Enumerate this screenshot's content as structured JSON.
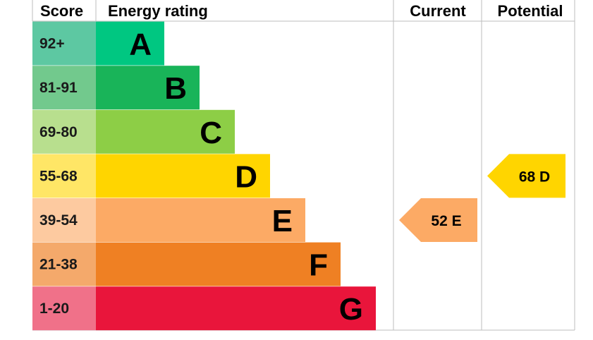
{
  "headers": {
    "score": "Score",
    "energy_rating": "Energy rating",
    "current": "Current",
    "potential": "Potential"
  },
  "chart_data": {
    "type": "bar",
    "categories": [
      "A",
      "B",
      "C",
      "D",
      "E",
      "F",
      "G"
    ],
    "bands": [
      {
        "letter": "A",
        "range": "92+",
        "bar_color": "#00c781",
        "score_color": "#5dc8a2"
      },
      {
        "letter": "B",
        "range": "81-91",
        "bar_color": "#19b459",
        "score_color": "#72c98d"
      },
      {
        "letter": "C",
        "range": "69-80",
        "bar_color": "#8dce46",
        "score_color": "#b8df8e"
      },
      {
        "letter": "D",
        "range": "55-68",
        "bar_color": "#ffd500",
        "score_color": "#ffe666"
      },
      {
        "letter": "E",
        "range": "39-54",
        "bar_color": "#fcaa65",
        "score_color": "#fdcaa0"
      },
      {
        "letter": "F",
        "range": "21-38",
        "bar_color": "#ef8023",
        "score_color": "#f4a96b"
      },
      {
        "letter": "G",
        "range": "1-20",
        "bar_color": "#e9153b",
        "score_color": "#f07189"
      }
    ],
    "current": {
      "value": 52,
      "band": "E",
      "label": "52  E",
      "color": "#fcaa65"
    },
    "potential": {
      "value": 68,
      "band": "D",
      "label": "68  D",
      "color": "#ffd500"
    }
  }
}
